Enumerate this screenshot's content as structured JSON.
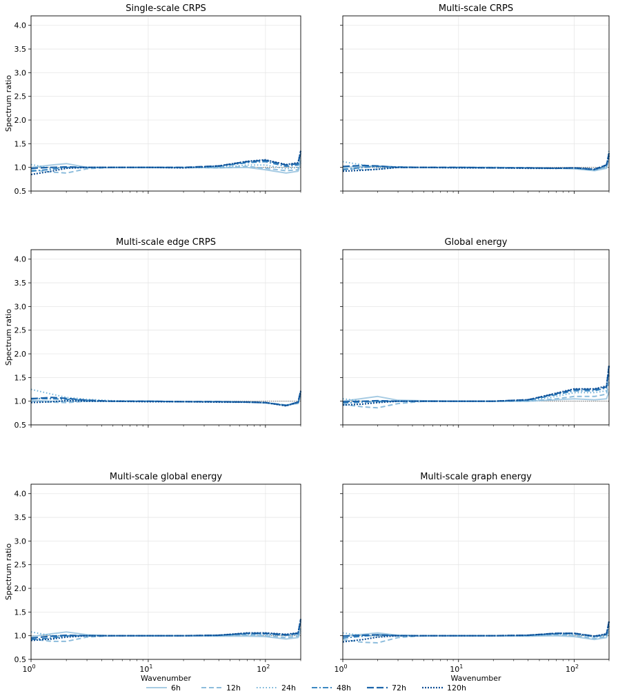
{
  "chart_data": {
    "type": "line",
    "xscale": "log",
    "xlim": [
      1,
      200
    ],
    "ylim": [
      0.5,
      4.2
    ],
    "yticks": [
      "0.5",
      "1.0",
      "1.5",
      "2.0",
      "2.5",
      "3.0",
      "3.5",
      "4.0"
    ],
    "xticks": [
      {
        "base": "10",
        "exp": "0"
      },
      {
        "base": "10",
        "exp": "1"
      },
      {
        "base": "10",
        "exp": "2"
      }
    ],
    "xlabel": "Wavenumber",
    "ylabel": "Spectrum ratio",
    "grid": true,
    "reference_line": 1.0,
    "legend": {
      "placement": "bottom-center",
      "entries": [
        {
          "name": "6h",
          "color": "#a6cbe3",
          "style": "solid"
        },
        {
          "name": "12h",
          "color": "#8cbcdc",
          "style": "dashed"
        },
        {
          "name": "24h",
          "color": "#6aaed6",
          "style": "dotted"
        },
        {
          "name": "48h",
          "color": "#3a87c2",
          "style": "dashdot"
        },
        {
          "name": "72h",
          "color": "#1b64aa",
          "style": "longdash"
        },
        {
          "name": "120h",
          "color": "#0b4d94",
          "style": "densedot"
        }
      ]
    },
    "x": [
      1,
      1.5,
      2,
      3,
      5,
      10,
      20,
      40,
      70,
      100,
      150,
      190,
      200
    ],
    "panels": [
      {
        "title": "Single-scale CRPS",
        "series": [
          {
            "name": "6h",
            "values": [
              1.0,
              1.05,
              1.08,
              1.0,
              1.0,
              1.0,
              1.0,
              0.99,
              1.0,
              0.95,
              0.88,
              0.92,
              1.1
            ]
          },
          {
            "name": "12h",
            "values": [
              0.95,
              0.9,
              0.88,
              0.97,
              1.0,
              1.0,
              1.0,
              0.99,
              1.02,
              0.98,
              0.93,
              0.95,
              1.15
            ]
          },
          {
            "name": "24h",
            "values": [
              1.06,
              0.98,
              1.0,
              1.0,
              1.0,
              1.0,
              0.99,
              1.0,
              1.05,
              1.05,
              0.97,
              1.0,
              1.2
            ]
          },
          {
            "name": "48h",
            "values": [
              0.92,
              0.96,
              1.0,
              1.0,
              1.0,
              1.0,
              1.0,
              1.02,
              1.1,
              1.12,
              1.02,
              1.05,
              1.3
            ]
          },
          {
            "name": "72h",
            "values": [
              0.98,
              1.0,
              1.01,
              1.0,
              1.0,
              1.0,
              1.0,
              1.03,
              1.12,
              1.15,
              1.05,
              1.08,
              1.35
            ]
          },
          {
            "name": "120h",
            "values": [
              0.85,
              0.92,
              0.98,
              1.0,
              1.0,
              1.0,
              0.99,
              1.03,
              1.13,
              1.16,
              1.06,
              1.1,
              1.35
            ]
          }
        ]
      },
      {
        "title": "Multi-scale CRPS",
        "series": [
          {
            "name": "6h",
            "values": [
              1.0,
              1.02,
              1.03,
              1.0,
              1.0,
              1.0,
              1.0,
              0.99,
              0.98,
              0.97,
              0.93,
              0.98,
              1.2
            ]
          },
          {
            "name": "12h",
            "values": [
              0.98,
              0.95,
              0.96,
              1.0,
              1.0,
              1.0,
              1.0,
              0.99,
              0.98,
              0.98,
              0.94,
              1.0,
              1.25
            ]
          },
          {
            "name": "24h",
            "values": [
              1.12,
              1.05,
              1.0,
              1.01,
              1.0,
              1.0,
              1.0,
              0.99,
              0.98,
              0.98,
              0.95,
              1.02,
              1.37
            ]
          },
          {
            "name": "48h",
            "values": [
              0.95,
              1.0,
              1.02,
              1.01,
              1.0,
              1.0,
              0.99,
              0.99,
              0.98,
              0.99,
              0.95,
              1.03,
              1.3
            ]
          },
          {
            "name": "72h",
            "values": [
              1.02,
              1.04,
              1.03,
              1.0,
              1.0,
              1.0,
              0.99,
              0.99,
              0.98,
              0.99,
              0.96,
              1.05,
              1.3
            ]
          },
          {
            "name": "120h",
            "values": [
              0.92,
              0.94,
              0.96,
              1.0,
              1.0,
              0.99,
              0.99,
              0.98,
              0.98,
              0.99,
              0.96,
              1.05,
              1.25
            ]
          }
        ]
      },
      {
        "title": "Multi-scale edge CRPS",
        "series": [
          {
            "name": "6h",
            "values": [
              1.02,
              1.0,
              1.0,
              1.0,
              1.0,
              1.0,
              0.99,
              0.99,
              0.98,
              0.96,
              0.92,
              0.95,
              1.1
            ]
          },
          {
            "name": "12h",
            "values": [
              1.0,
              0.98,
              0.97,
              1.0,
              1.0,
              1.0,
              0.99,
              0.99,
              0.98,
              0.97,
              0.92,
              0.96,
              1.15
            ]
          },
          {
            "name": "24h",
            "values": [
              1.25,
              1.15,
              1.08,
              1.04,
              1.01,
              1.0,
              0.99,
              0.99,
              0.98,
              0.97,
              0.92,
              0.97,
              1.2
            ]
          },
          {
            "name": "48h",
            "values": [
              1.06,
              1.05,
              1.04,
              1.02,
              1.0,
              1.0,
              0.99,
              0.99,
              0.98,
              0.97,
              0.91,
              0.97,
              1.2
            ]
          },
          {
            "name": "72h",
            "values": [
              1.05,
              1.08,
              1.06,
              1.02,
              1.0,
              1.0,
              0.99,
              0.99,
              0.98,
              0.97,
              0.91,
              0.98,
              1.22
            ]
          },
          {
            "name": "120h",
            "values": [
              0.97,
              0.99,
              1.01,
              1.0,
              1.0,
              0.99,
              0.99,
              0.98,
              0.98,
              0.97,
              0.9,
              0.98,
              1.22
            ]
          }
        ]
      },
      {
        "title": "Global energy",
        "series": [
          {
            "name": "6h",
            "values": [
              1.0,
              1.06,
              1.1,
              1.02,
              1.01,
              1.0,
              1.0,
              1.0,
              1.03,
              1.05,
              1.03,
              1.05,
              1.2
            ]
          },
          {
            "name": "12h",
            "values": [
              0.93,
              0.88,
              0.86,
              0.95,
              1.0,
              1.0,
              1.0,
              1.0,
              1.05,
              1.1,
              1.1,
              1.15,
              1.4
            ]
          },
          {
            "name": "24h",
            "values": [
              1.05,
              1.0,
              0.98,
              1.01,
              1.0,
              1.0,
              1.0,
              1.01,
              1.1,
              1.18,
              1.18,
              1.22,
              1.55
            ]
          },
          {
            "name": "48h",
            "values": [
              0.96,
              0.98,
              1.0,
              1.0,
              1.0,
              1.0,
              1.0,
              1.02,
              1.14,
              1.22,
              1.22,
              1.28,
              1.65
            ]
          },
          {
            "name": "72h",
            "values": [
              0.99,
              1.0,
              1.01,
              1.0,
              1.0,
              1.0,
              1.0,
              1.03,
              1.16,
              1.25,
              1.25,
              1.3,
              1.75
            ]
          },
          {
            "name": "120h",
            "values": [
              0.92,
              0.94,
              0.97,
              1.0,
              1.0,
              1.0,
              1.0,
              1.03,
              1.17,
              1.26,
              1.26,
              1.32,
              1.75
            ]
          }
        ]
      },
      {
        "title": "Multi-scale global energy",
        "series": [
          {
            "name": "6h",
            "values": [
              0.98,
              1.04,
              1.08,
              1.02,
              1.0,
              1.0,
              1.0,
              0.99,
              0.99,
              0.98,
              0.93,
              0.96,
              1.1
            ]
          },
          {
            "name": "12h",
            "values": [
              0.93,
              0.88,
              0.88,
              0.97,
              1.0,
              1.0,
              1.0,
              1.0,
              1.01,
              1.0,
              0.96,
              0.99,
              1.15
            ]
          },
          {
            "name": "24h",
            "values": [
              1.08,
              1.0,
              0.99,
              1.01,
              1.0,
              1.0,
              1.0,
              1.0,
              1.03,
              1.03,
              1.0,
              1.02,
              1.25
            ]
          },
          {
            "name": "48h",
            "values": [
              0.92,
              0.95,
              1.0,
              1.0,
              1.0,
              1.0,
              1.0,
              1.01,
              1.04,
              1.04,
              1.01,
              1.04,
              1.3
            ]
          },
          {
            "name": "72h",
            "values": [
              0.95,
              0.99,
              1.01,
              1.0,
              1.0,
              1.0,
              1.0,
              1.01,
              1.05,
              1.05,
              1.02,
              1.05,
              1.35
            ]
          },
          {
            "name": "120h",
            "values": [
              0.9,
              0.93,
              0.97,
              1.0,
              1.0,
              1.0,
              1.0,
              1.01,
              1.06,
              1.06,
              1.03,
              1.06,
              1.35
            ]
          }
        ]
      },
      {
        "title": "Multi-scale graph energy",
        "series": [
          {
            "name": "6h",
            "values": [
              1.0,
              1.03,
              1.06,
              1.01,
              1.0,
              1.0,
              1.0,
              0.99,
              1.0,
              0.98,
              0.92,
              0.96,
              1.1
            ]
          },
          {
            "name": "12h",
            "values": [
              0.92,
              0.86,
              0.85,
              0.96,
              1.0,
              1.0,
              1.0,
              1.0,
              1.02,
              1.0,
              0.94,
              0.98,
              1.15
            ]
          },
          {
            "name": "24h",
            "values": [
              1.06,
              1.0,
              0.99,
              1.01,
              1.0,
              1.0,
              1.0,
              1.0,
              1.03,
              1.03,
              0.97,
              1.0,
              1.2
            ]
          },
          {
            "name": "48h",
            "values": [
              0.95,
              0.99,
              1.02,
              1.0,
              1.0,
              1.0,
              1.0,
              1.01,
              1.04,
              1.04,
              0.98,
              1.02,
              1.25
            ]
          },
          {
            "name": "72h",
            "values": [
              0.99,
              1.01,
              1.02,
              1.0,
              1.0,
              1.0,
              1.0,
              1.01,
              1.05,
              1.05,
              0.99,
              1.03,
              1.3
            ]
          },
          {
            "name": "120h",
            "values": [
              0.87,
              0.92,
              0.97,
              1.0,
              1.0,
              1.0,
              1.0,
              1.01,
              1.05,
              1.05,
              0.99,
              1.04,
              1.3
            ]
          }
        ]
      }
    ]
  }
}
